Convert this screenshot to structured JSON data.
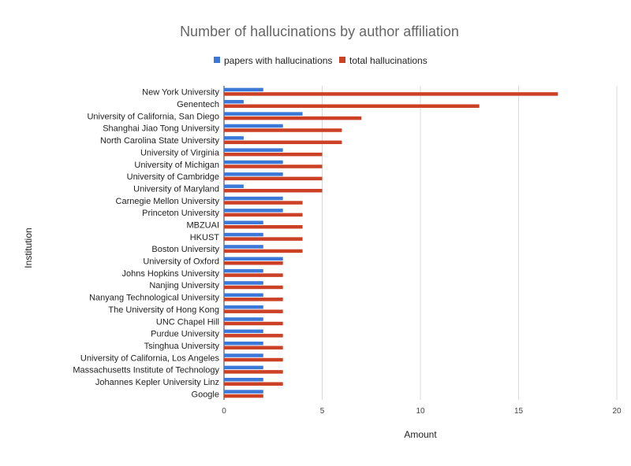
{
  "chart_data": {
    "type": "bar",
    "orientation": "horizontal",
    "title": "Number of hallucinations by author affiliation",
    "xlabel": "Amount",
    "ylabel": "Institution",
    "xlim": [
      0,
      20
    ],
    "xticks": [
      0,
      5,
      10,
      15,
      20
    ],
    "grid": true,
    "legend_position": "top",
    "categories": [
      "New York University",
      "Genentech",
      "University of California, San Diego",
      "Shanghai Jiao Tong University",
      "North Carolina State University",
      "University of Virginia",
      "University of Michigan",
      "University of Cambridge",
      "University of Maryland",
      "Carnegie Mellon University",
      "Princeton University",
      "MBZUAI",
      "HKUST",
      "Boston University",
      "University of Oxford",
      "Johns Hopkins University",
      "Nanjing University",
      "Nanyang Technological University",
      "The University of Hong Kong",
      "UNC Chapel Hill",
      "Purdue University",
      "Tsinghua University",
      "University of California, Los Angeles",
      "Massachusetts Institute of Technology",
      "Johannes Kepler University Linz",
      "Google"
    ],
    "series": [
      {
        "name": "papers with hallucinations",
        "color": "#3c78d8",
        "values": [
          2,
          1,
          4,
          3,
          1,
          3,
          3,
          3,
          1,
          3,
          3,
          2,
          2,
          2,
          3,
          2,
          2,
          2,
          2,
          2,
          2,
          2,
          2,
          2,
          2,
          2
        ]
      },
      {
        "name": "total hallucinations",
        "color": "#cc4125",
        "values": [
          17,
          13,
          7,
          6,
          6,
          5,
          5,
          5,
          5,
          4,
          4,
          4,
          4,
          4,
          3,
          3,
          3,
          3,
          3,
          3,
          3,
          3,
          3,
          3,
          3,
          2
        ]
      }
    ]
  }
}
